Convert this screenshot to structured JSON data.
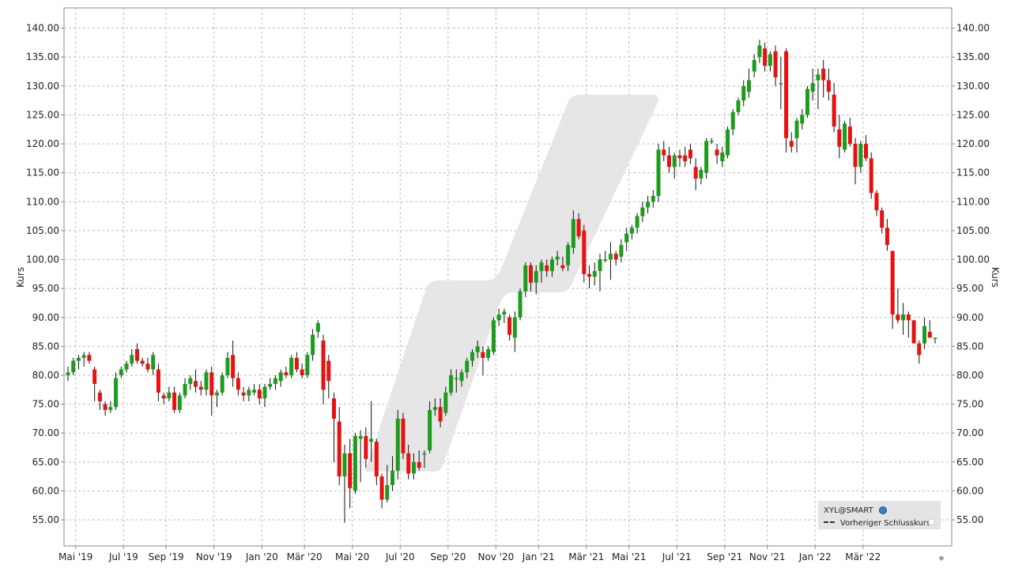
{
  "chart_data": {
    "type": "candlestick",
    "ylabel_left": "Kurs",
    "ylabel_right": "Kurs",
    "ylim": [
      50.5,
      143.5
    ],
    "y_ticks": [
      "55.00",
      "60.00",
      "65.00",
      "70.00",
      "75.00",
      "80.00",
      "85.00",
      "90.00",
      "95.00",
      "100.00",
      "105.00",
      "110.00",
      "115.00",
      "120.00",
      "125.00",
      "130.00",
      "135.00",
      "140.00"
    ],
    "x_ticks": [
      "Mai '19",
      "Jul '19",
      "Sep '19",
      "Nov '19",
      "Jan '20",
      "Mär '20",
      "Mai '20",
      "Jul '20",
      "Sep '20",
      "Nov '20",
      "Jan '21",
      "Mär '21",
      "Mai '21",
      "Jul '21",
      "Sep '21",
      "Nov '21",
      "Jan '22",
      "Mär '22"
    ],
    "grid": true,
    "up_color": "#1c9c1c",
    "down_color": "#e81010",
    "legend": {
      "position": "bottom-right",
      "symbol": "XYL@SMART",
      "prev_close_label": "Vorheriger Schlusskurs"
    },
    "ohlc": [
      [
        80.0,
        81.5,
        79.0,
        80.5
      ],
      [
        80.5,
        83.0,
        80.0,
        82.5
      ],
      [
        82.5,
        83.5,
        81.0,
        83.0
      ],
      [
        83.0,
        84.0,
        81.5,
        83.5
      ],
      [
        83.5,
        84.0,
        82.0,
        82.5
      ],
      [
        81.0,
        81.5,
        75.5,
        78.5
      ],
      [
        77.0,
        77.5,
        74.0,
        75.5
      ],
      [
        75.0,
        75.5,
        73.0,
        74.0
      ],
      [
        74.0,
        75.5,
        73.5,
        74.5
      ],
      [
        74.5,
        80.5,
        74.0,
        79.5
      ],
      [
        80.0,
        81.5,
        79.5,
        81.0
      ],
      [
        81.0,
        82.5,
        80.5,
        82.0
      ],
      [
        82.0,
        84.5,
        81.5,
        83.5
      ],
      [
        84.5,
        85.5,
        82.0,
        82.5
      ],
      [
        82.5,
        83.0,
        81.5,
        82.0
      ],
      [
        82.0,
        83.0,
        80.5,
        81.0
      ],
      [
        81.0,
        84.0,
        80.0,
        83.5
      ],
      [
        81.0,
        82.0,
        75.5,
        77.0
      ],
      [
        76.5,
        77.0,
        75.0,
        76.0
      ],
      [
        76.0,
        78.0,
        75.5,
        77.0
      ],
      [
        77.0,
        78.0,
        73.5,
        74.0
      ],
      [
        74.0,
        77.0,
        73.5,
        76.5
      ],
      [
        76.5,
        79.5,
        76.0,
        78.5
      ],
      [
        78.5,
        80.0,
        77.5,
        79.5
      ],
      [
        79.0,
        81.0,
        77.0,
        78.0
      ],
      [
        78.0,
        79.0,
        76.5,
        77.5
      ],
      [
        77.5,
        81.0,
        76.5,
        80.5
      ],
      [
        80.5,
        81.5,
        73.0,
        76.5
      ],
      [
        76.5,
        77.5,
        74.5,
        77.0
      ],
      [
        77.0,
        80.5,
        76.5,
        80.0
      ],
      [
        80.0,
        84.0,
        79.5,
        83.0
      ],
      [
        83.5,
        86.0,
        78.0,
        79.5
      ],
      [
        79.5,
        80.5,
        76.5,
        77.5
      ],
      [
        77.0,
        78.0,
        75.5,
        76.5
      ],
      [
        76.5,
        78.0,
        75.5,
        77.5
      ],
      [
        77.0,
        78.5,
        76.5,
        77.5
      ],
      [
        77.5,
        78.5,
        75.0,
        76.0
      ],
      [
        76.0,
        78.5,
        74.5,
        78.0
      ],
      [
        78.0,
        79.5,
        77.5,
        78.5
      ],
      [
        78.5,
        80.0,
        77.5,
        79.5
      ],
      [
        79.0,
        81.0,
        78.0,
        80.5
      ],
      [
        80.5,
        81.5,
        79.5,
        80.0
      ],
      [
        80.0,
        83.5,
        79.5,
        83.0
      ],
      [
        83.0,
        84.0,
        80.5,
        81.0
      ],
      [
        81.0,
        82.0,
        79.5,
        80.0
      ],
      [
        80.0,
        84.0,
        79.5,
        83.5
      ],
      [
        83.5,
        88.0,
        82.5,
        87.0
      ],
      [
        87.5,
        89.5,
        86.5,
        89.0
      ],
      [
        86.0,
        87.0,
        75.0,
        77.5
      ],
      [
        82.5,
        83.5,
        76.0,
        79.0
      ],
      [
        76.0,
        77.0,
        65.0,
        72.5
      ],
      [
        72.0,
        74.5,
        61.0,
        62.5
      ],
      [
        62.5,
        68.0,
        54.5,
        66.5
      ],
      [
        66.5,
        69.0,
        57.0,
        60.5
      ],
      [
        60.0,
        70.0,
        59.5,
        69.5
      ],
      [
        69.0,
        70.5,
        61.5,
        69.5
      ],
      [
        69.5,
        71.0,
        64.0,
        65.5
      ],
      [
        68.5,
        75.5,
        65.0,
        69.0
      ],
      [
        68.5,
        69.0,
        61.0,
        62.5
      ],
      [
        62.5,
        63.0,
        57.0,
        58.5
      ],
      [
        58.5,
        64.5,
        58.0,
        61.0
      ],
      [
        61.0,
        66.0,
        60.0,
        63.5
      ],
      [
        63.5,
        74.0,
        62.0,
        72.5
      ],
      [
        72.5,
        73.5,
        65.5,
        66.5
      ],
      [
        66.5,
        68.0,
        62.0,
        63.0
      ],
      [
        63.0,
        66.5,
        62.0,
        65.0
      ],
      [
        65.0,
        67.0,
        63.5,
        64.0
      ],
      [
        66.5,
        67.0,
        64.0,
        66.5
      ],
      [
        67.0,
        75.5,
        66.5,
        74.0
      ],
      [
        74.0,
        76.0,
        73.0,
        74.5
      ],
      [
        74.5,
        76.0,
        71.0,
        72.0
      ],
      [
        73.5,
        78.0,
        73.0,
        77.0
      ],
      [
        77.0,
        81.0,
        76.5,
        80.0
      ],
      [
        79.5,
        81.0,
        77.0,
        79.5
      ],
      [
        79.0,
        81.0,
        78.0,
        80.5
      ],
      [
        80.5,
        83.0,
        79.5,
        82.5
      ],
      [
        82.5,
        84.5,
        81.5,
        84.0
      ],
      [
        84.0,
        86.0,
        83.0,
        85.0
      ],
      [
        84.0,
        85.0,
        80.0,
        83.0
      ],
      [
        83.0,
        85.0,
        82.5,
        84.5
      ],
      [
        84.0,
        90.0,
        83.5,
        89.5
      ],
      [
        89.5,
        91.5,
        88.5,
        90.5
      ],
      [
        90.5,
        91.5,
        89.0,
        91.0
      ],
      [
        90.0,
        90.5,
        86.0,
        87.0
      ],
      [
        86.5,
        91.0,
        84.0,
        90.0
      ],
      [
        90.0,
        95.0,
        89.5,
        94.5
      ],
      [
        94.5,
        99.5,
        93.5,
        99.0
      ],
      [
        99.0,
        99.5,
        94.5,
        96.0
      ],
      [
        96.0,
        99.0,
        94.0,
        98.0
      ],
      [
        98.0,
        100.0,
        96.0,
        99.5
      ],
      [
        99.0,
        100.0,
        97.0,
        98.0
      ],
      [
        98.0,
        100.5,
        97.0,
        100.0
      ],
      [
        100.0,
        101.5,
        99.0,
        100.5
      ],
      [
        99.0,
        100.5,
        98.0,
        98.5
      ],
      [
        99.0,
        103.0,
        98.0,
        102.5
      ],
      [
        102.0,
        108.5,
        101.0,
        107.0
      ],
      [
        107.0,
        108.0,
        103.5,
        104.0
      ],
      [
        105.0,
        106.0,
        96.0,
        97.5
      ],
      [
        97.5,
        99.0,
        95.0,
        97.0
      ],
      [
        97.0,
        99.5,
        95.5,
        98.0
      ],
      [
        98.0,
        101.0,
        94.5,
        100.0
      ],
      [
        100.0,
        101.5,
        99.5,
        100.0
      ],
      [
        100.0,
        103.0,
        96.5,
        101.0
      ],
      [
        101.0,
        101.5,
        99.0,
        100.0
      ],
      [
        100.5,
        103.5,
        99.5,
        102.5
      ],
      [
        103.0,
        105.5,
        101.5,
        104.5
      ],
      [
        104.5,
        106.0,
        103.5,
        105.5
      ],
      [
        105.5,
        108.0,
        104.5,
        107.5
      ],
      [
        107.5,
        110.0,
        106.5,
        109.0
      ],
      [
        109.0,
        111.0,
        108.0,
        110.0
      ],
      [
        110.0,
        112.0,
        109.0,
        111.0
      ],
      [
        111.0,
        120.0,
        110.0,
        119.0
      ],
      [
        119.0,
        120.5,
        117.0,
        118.0
      ],
      [
        118.0,
        119.5,
        115.0,
        116.0
      ],
      [
        116.0,
        118.5,
        114.0,
        118.0
      ],
      [
        118.0,
        119.0,
        116.0,
        117.5
      ],
      [
        118.0,
        119.5,
        116.0,
        117.0
      ],
      [
        119.0,
        120.0,
        116.5,
        117.5
      ],
      [
        116.0,
        117.5,
        112.0,
        114.0
      ],
      [
        114.0,
        116.0,
        113.0,
        115.5
      ],
      [
        115.0,
        121.0,
        114.0,
        120.5
      ],
      [
        120.5,
        121.0,
        120.0,
        120.5
      ],
      [
        119.0,
        120.0,
        116.5,
        118.0
      ],
      [
        117.0,
        119.5,
        116.0,
        118.5
      ],
      [
        118.0,
        123.0,
        117.5,
        122.5
      ],
      [
        122.5,
        126.0,
        121.5,
        125.5
      ],
      [
        125.5,
        128.0,
        125.0,
        127.5
      ],
      [
        127.5,
        131.0,
        126.5,
        130.0
      ],
      [
        129.0,
        133.0,
        128.0,
        131.0
      ],
      [
        132.5,
        135.5,
        131.5,
        134.5
      ],
      [
        135.0,
        138.0,
        134.0,
        137.0
      ],
      [
        136.5,
        137.5,
        132.5,
        133.5
      ],
      [
        133.5,
        136.0,
        132.5,
        135.5
      ],
      [
        136.0,
        137.0,
        130.0,
        131.5
      ],
      [
        130.5,
        135.0,
        126.0,
        130.5
      ],
      [
        136.0,
        136.5,
        118.5,
        121.0
      ],
      [
        120.5,
        122.0,
        118.5,
        119.5
      ],
      [
        121.0,
        124.5,
        118.5,
        124.0
      ],
      [
        123.5,
        126.0,
        122.5,
        125.0
      ],
      [
        125.0,
        130.0,
        124.5,
        129.5
      ],
      [
        129.0,
        133.0,
        127.5,
        130.5
      ],
      [
        131.0,
        133.0,
        126.0,
        132.0
      ],
      [
        133.0,
        134.5,
        128.0,
        131.0
      ],
      [
        131.0,
        133.0,
        127.5,
        129.0
      ],
      [
        128.5,
        130.5,
        122.0,
        123.0
      ],
      [
        122.5,
        125.0,
        117.5,
        119.5
      ],
      [
        119.0,
        124.0,
        118.5,
        123.5
      ],
      [
        123.0,
        124.5,
        119.5,
        120.0
      ],
      [
        120.0,
        121.0,
        113.0,
        116.0
      ],
      [
        116.0,
        120.5,
        115.0,
        120.0
      ],
      [
        120.0,
        121.5,
        117.0,
        117.5
      ],
      [
        117.5,
        118.5,
        110.5,
        111.5
      ],
      [
        111.5,
        112.0,
        107.5,
        108.5
      ],
      [
        108.5,
        109.0,
        104.5,
        105.5
      ],
      [
        105.5,
        107.0,
        101.5,
        102.5
      ],
      [
        101.5,
        101.5,
        88.0,
        90.5
      ],
      [
        90.5,
        95.0,
        89.0,
        89.5
      ],
      [
        89.5,
        92.5,
        87.0,
        90.5
      ],
      [
        90.5,
        91.0,
        86.5,
        89.5
      ],
      [
        89.5,
        89.5,
        85.5,
        85.5
      ],
      [
        85.5,
        86.0,
        82.0,
        83.5
      ],
      [
        85.5,
        90.0,
        84.5,
        88.5
      ],
      [
        87.5,
        89.5,
        86.5,
        86.5
      ],
      [
        86.5,
        86.5,
        85.5,
        86.5
      ]
    ]
  }
}
